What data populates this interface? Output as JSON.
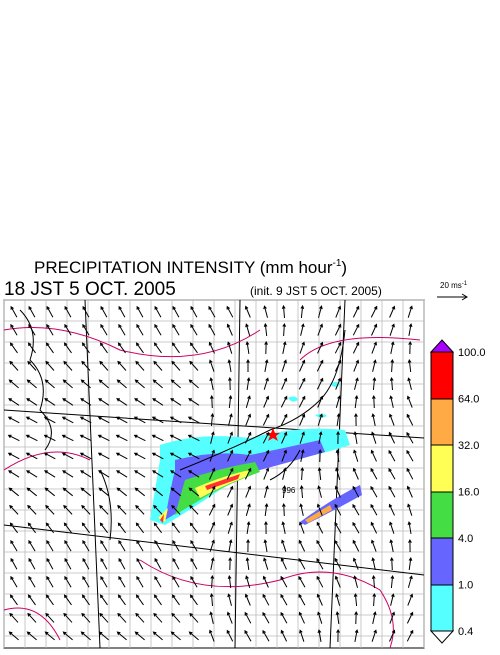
{
  "title": {
    "text": "PRECIPITATION INTENSITY (mm hour",
    "exponent": "-1",
    "close": ")"
  },
  "valid_time": "18 JST 5 OCT. 2005",
  "init_time": "(init. 9 JST 5 OCT. 2005)",
  "vector_scale": {
    "text": "20 ms",
    "exponent": "-1"
  },
  "map": {
    "pressure_label": "996"
  },
  "colorbar": {
    "labels": [
      "0.4",
      "1.0",
      "4.0",
      "16.0",
      "32.0",
      "64.0",
      "100.0"
    ]
  }
}
